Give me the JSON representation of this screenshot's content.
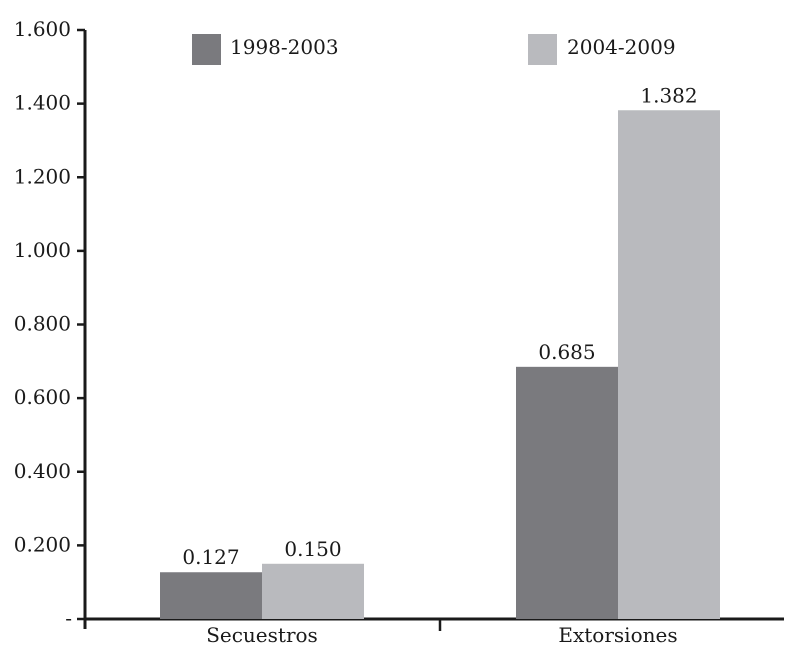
{
  "chart_data": {
    "type": "bar",
    "categories": [
      "Secuestros",
      "Extorsiones"
    ],
    "series": [
      {
        "name": "1998-2003",
        "values": [
          0.127,
          0.685
        ],
        "labels": [
          "0.127",
          "0.685"
        ],
        "color": "#7a7a7e"
      },
      {
        "name": "2004-2009",
        "values": [
          0.15,
          1.382
        ],
        "labels": [
          "0.150",
          "1.382"
        ],
        "color": "#b9babe"
      }
    ],
    "ylim": [
      0,
      1.6
    ],
    "yticks": [
      0,
      0.2,
      0.4,
      0.6,
      0.8,
      1.0,
      1.2,
      1.4,
      1.6
    ],
    "ytick_labels": [
      "-",
      "0.200",
      "0.400",
      "0.600",
      "0.800",
      "1.000",
      "1.200",
      "1.400",
      "1.600"
    ],
    "title": "",
    "xlabel": "",
    "ylabel": "",
    "grid": false,
    "legend_position": "top"
  }
}
